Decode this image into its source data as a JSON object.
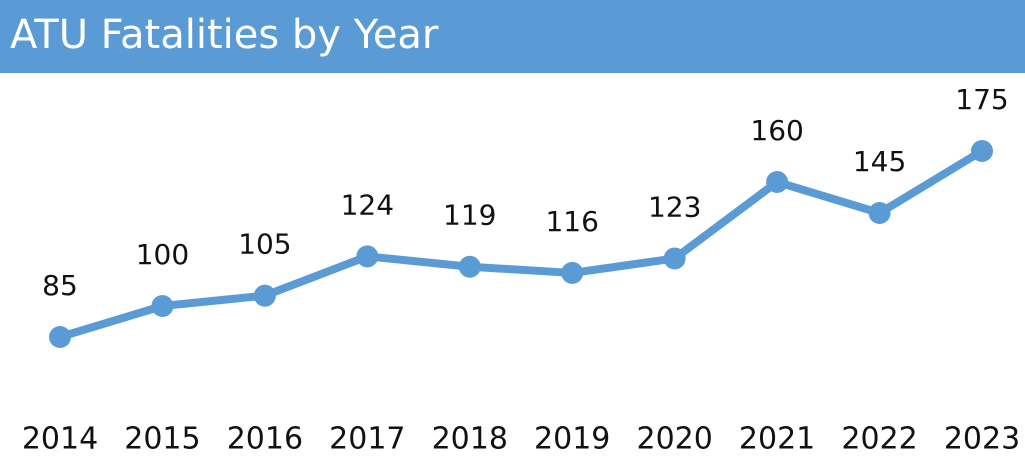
{
  "chart_data": {
    "type": "line",
    "title": "ATU Fatalities by Year",
    "categories": [
      "2014",
      "2015",
      "2016",
      "2017",
      "2018",
      "2019",
      "2020",
      "2021",
      "2022",
      "2023"
    ],
    "values": [
      85,
      100,
      105,
      124,
      119,
      116,
      123,
      160,
      145,
      175
    ],
    "color": "#5b9bd5"
  }
}
